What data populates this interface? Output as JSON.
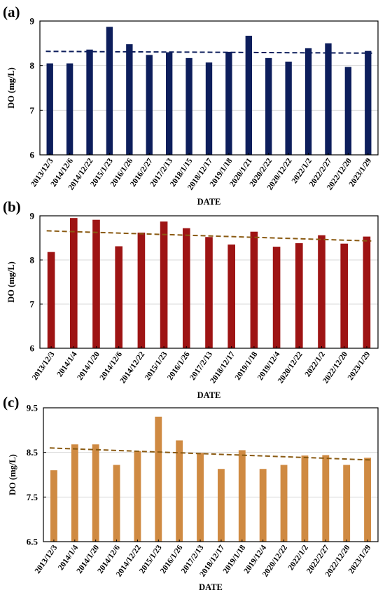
{
  "chart_data": [
    {
      "type": "bar",
      "panel_label": "(a)",
      "xlabel": "DATE",
      "ylabel": "DO (mg/L)",
      "ylim": [
        6,
        9
      ],
      "yticks": [
        "6",
        "7",
        "8",
        "9"
      ],
      "grid": true,
      "trendline": {
        "style": "dashed",
        "color": "#0d1e5c",
        "start": 8.32,
        "end": 8.28
      },
      "bar_color": "#0d1e5c",
      "categories": [
        "2013/12/3",
        "2014/12/6",
        "2014/12/22",
        "2015/1/23",
        "2016/1/26",
        "2016/2/27",
        "2017/2/13",
        "2018/1/15",
        "2018/12/17",
        "2019/1/18",
        "2020/1/21",
        "2020/2/22",
        "2020/12/22",
        "2022/1/2",
        "2022/2/27",
        "2022/12/20",
        "2023/1/29"
      ],
      "values": [
        8.05,
        8.05,
        8.36,
        8.87,
        8.48,
        8.24,
        8.3,
        8.17,
        8.07,
        8.31,
        8.67,
        8.17,
        8.09,
        8.39,
        8.5,
        7.97,
        8.33
      ]
    },
    {
      "type": "bar",
      "panel_label": "(b)",
      "xlabel": "DATE",
      "ylabel": "DO (mg/L)",
      "ylim": [
        6,
        9
      ],
      "yticks": [
        "6",
        "7",
        "8",
        "9"
      ],
      "grid": true,
      "trendline": {
        "style": "dashed",
        "color": "#8a5a12",
        "start": 8.66,
        "end": 8.43
      },
      "bar_color": "#9e1414",
      "categories": [
        "2013/12/3",
        "2014/1/4",
        "2014/1/20",
        "2014/12/6",
        "2014/12/22",
        "2015/1/23",
        "2016/1/26",
        "2017/2/13",
        "2018/12/17",
        "2019/1/18",
        "2019/12/4",
        "2020/12/22",
        "2022/1/2",
        "2022/12/20",
        "2023/1/29"
      ],
      "values": [
        8.18,
        8.95,
        8.91,
        8.31,
        8.62,
        8.87,
        8.72,
        8.52,
        8.35,
        8.64,
        8.3,
        8.38,
        8.56,
        8.37,
        8.53
      ]
    },
    {
      "type": "bar",
      "panel_label": "(c)",
      "xlabel": "DATE",
      "ylabel": "DO (mg/L)",
      "ylim": [
        6.5,
        9.5
      ],
      "yticks": [
        "6.5",
        "7.5",
        "8.5",
        "9.5"
      ],
      "grid": true,
      "trendline": {
        "style": "dashed",
        "color": "#8a5a12",
        "start": 8.6,
        "end": 8.33
      },
      "bar_color": "#cf8a42",
      "categories": [
        "2013/12/3",
        "2014/1/4",
        "2014/1/20",
        "2014/12/6",
        "2014/12/22",
        "2015/1/23",
        "2016/1/26",
        "2017/2/13",
        "2018/12/17",
        "2019/1/18",
        "2019/12/4",
        "2020/12/22",
        "2022/1/2",
        "2022/2/27",
        "2022/12/20",
        "2023/1/29"
      ],
      "values": [
        8.1,
        8.68,
        8.68,
        8.22,
        8.53,
        9.3,
        8.77,
        8.49,
        8.13,
        8.55,
        8.13,
        8.22,
        8.43,
        8.44,
        8.22,
        8.38
      ]
    }
  ]
}
